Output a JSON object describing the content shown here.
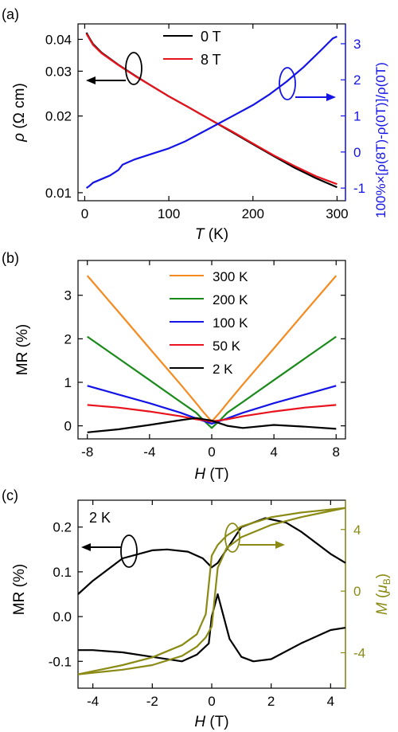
{
  "colors": {
    "black": "#000000",
    "red": "#e8131c",
    "blue": "#1414e6",
    "orange": "#f58a1f",
    "green": "#1a8a1a",
    "olive": "#8a8a14"
  },
  "chart_data": [
    {
      "panel_label": "(a)",
      "type": "line",
      "xlabel": "T (K)",
      "xlabel_italic": "T",
      "xlabel_unit": " (K)",
      "ylabel": "ρ (Ω cm)",
      "ylabel_italic": "ρ",
      "ylabel_unit": " (Ω cm)",
      "y2label": "100%×[ρ(8T)-ρ(0T)]/ρ(0T)",
      "y2_color": "#1414e6",
      "xlim": [
        -8,
        310
      ],
      "xticks": [
        0,
        100,
        200,
        300
      ],
      "ylim": [
        0.0093,
        0.046
      ],
      "yscale": "log",
      "yticks": [
        0.01,
        0.02,
        0.03,
        0.04
      ],
      "ytick_labels": [
        "0.01",
        "0.02",
        "0.03",
        "0.04"
      ],
      "y2lim": [
        -1.35,
        3.55
      ],
      "y2ticks": [
        -1,
        0,
        1,
        2,
        3
      ],
      "legend": [
        "0 T",
        "8 T"
      ],
      "legend_position": "top-center",
      "series": [
        {
          "name": "0 T",
          "axis": "left",
          "color": "#000000",
          "x": [
            2,
            5,
            10,
            20,
            40,
            60,
            80,
            100,
            125,
            150,
            175,
            200,
            225,
            250,
            275,
            300
          ],
          "y": [
            0.0425,
            0.0408,
            0.0383,
            0.0355,
            0.0318,
            0.0288,
            0.0262,
            0.0239,
            0.0215,
            0.0193,
            0.0173,
            0.0155,
            0.0139,
            0.0125,
            0.0114,
            0.0105
          ]
        },
        {
          "name": "8 T",
          "axis": "left",
          "color": "#e8131c",
          "x": [
            2,
            5,
            10,
            20,
            40,
            60,
            80,
            100,
            125,
            150,
            175,
            200,
            225,
            250,
            275,
            300
          ],
          "y": [
            0.0421,
            0.0405,
            0.038,
            0.0353,
            0.0317,
            0.0287,
            0.0262,
            0.0239,
            0.0215,
            0.0193,
            0.0174,
            0.0156,
            0.014,
            0.0127,
            0.0116,
            0.0108
          ]
        },
        {
          "name": "MR",
          "axis": "right",
          "color": "#1414e6",
          "x": [
            2,
            5,
            10,
            20,
            30,
            40,
            45,
            50,
            60,
            80,
            100,
            120,
            140,
            160,
            180,
            200,
            220,
            240,
            260,
            280,
            295,
            300
          ],
          "y": [
            -1.0,
            -0.95,
            -0.85,
            -0.75,
            -0.65,
            -0.5,
            -0.35,
            -0.3,
            -0.2,
            -0.05,
            0.1,
            0.3,
            0.55,
            0.8,
            1.05,
            1.3,
            1.6,
            1.95,
            2.35,
            2.8,
            3.15,
            3.2
          ]
        }
      ],
      "annotations": [
        {
          "type": "ellipse_arrow",
          "direction": "left",
          "color": "#000000",
          "at_x": 58,
          "at_y": 0.0295
        },
        {
          "type": "ellipse_arrow",
          "direction": "right",
          "color": "#1414e6",
          "at_x": 243,
          "at_y2": 1.9
        }
      ]
    },
    {
      "panel_label": "(b)",
      "type": "line",
      "xlabel": "H (T)",
      "xlabel_italic": "H",
      "xlabel_unit": " (T)",
      "ylabel": "MR (%)",
      "xlim": [
        -8.6,
        8.6
      ],
      "xticks": [
        -8,
        -4,
        0,
        4,
        8
      ],
      "ylim": [
        -0.3,
        3.8
      ],
      "yticks": [
        0,
        1,
        2,
        3
      ],
      "legend": [
        "300 K",
        "200 K",
        "100 K",
        "50 K",
        "2 K"
      ],
      "legend_position": "top-center",
      "series": [
        {
          "name": "300 K",
          "color": "#f58a1f",
          "x": [
            -8,
            -6,
            -4,
            -2,
            -1,
            -0.5,
            0,
            0.5,
            1,
            2,
            4,
            6,
            8
          ],
          "y": [
            3.45,
            2.62,
            1.78,
            0.95,
            0.52,
            0.3,
            0.1,
            0.3,
            0.52,
            0.95,
            1.78,
            2.62,
            3.45
          ]
        },
        {
          "name": "200 K",
          "color": "#1a8a1a",
          "x": [
            -8,
            -6,
            -4,
            -2,
            -1,
            -0.5,
            0,
            0.5,
            1,
            2,
            4,
            6,
            8
          ],
          "y": [
            2.05,
            1.55,
            1.05,
            0.55,
            0.3,
            0.12,
            -0.05,
            0.12,
            0.3,
            0.55,
            1.05,
            1.55,
            2.05
          ]
        },
        {
          "name": "100 K",
          "color": "#1414e6",
          "x": [
            -8,
            -6,
            -4,
            -2,
            -1,
            0,
            1,
            2,
            4,
            6,
            8
          ],
          "y": [
            0.92,
            0.72,
            0.52,
            0.3,
            0.17,
            0.05,
            0.17,
            0.3,
            0.52,
            0.72,
            0.92
          ]
        },
        {
          "name": "50 K",
          "color": "#e8131c",
          "x": [
            -8,
            -6,
            -4,
            -2,
            -1,
            0,
            1,
            2,
            4,
            6,
            8
          ],
          "y": [
            0.48,
            0.42,
            0.33,
            0.22,
            0.15,
            0.1,
            0.15,
            0.22,
            0.33,
            0.42,
            0.48
          ]
        },
        {
          "name": "2 K",
          "color": "#000000",
          "x": [
            -8,
            -6,
            -4,
            -2,
            -1,
            0,
            1,
            2,
            4,
            6,
            8
          ],
          "y": [
            -0.15,
            -0.08,
            0.02,
            0.13,
            0.18,
            0.12,
            0.0,
            -0.05,
            0.02,
            -0.02,
            -0.07
          ]
        }
      ]
    },
    {
      "panel_label": "(c)",
      "type": "line",
      "xlabel": "H (T)",
      "xlabel_italic": "H",
      "xlabel_unit": " (T)",
      "ylabel": "MR (%)",
      "y2label": "M (μB)",
      "y2label_italic": "M",
      "y2label_unit_main": "μ",
      "y2label_unit_sub": "B",
      "y2_color": "#8a8a14",
      "xlim": [
        -4.5,
        4.5
      ],
      "xticks": [
        -4,
        -2,
        0,
        2,
        4
      ],
      "ylim": [
        -0.16,
        0.26
      ],
      "yticks": [
        -0.1,
        0.0,
        0.1,
        0.2
      ],
      "ytick_labels": [
        "-0.1",
        "0.0",
        "0.1",
        "0.2"
      ],
      "y2lim": [
        -6.3,
        5.9
      ],
      "y2ticks": [
        -4,
        0,
        4
      ],
      "annotation_text": "2 K",
      "series": [
        {
          "name": "MR down sweep",
          "axis": "left",
          "color": "#000000",
          "x": [
            4.5,
            4,
            3,
            2.5,
            1.8,
            1,
            0.5,
            0.2,
            0,
            -0.3,
            -0.8,
            -1.5,
            -2,
            -3,
            -4,
            -4.5
          ],
          "y": [
            0.12,
            0.14,
            0.19,
            0.21,
            0.22,
            0.2,
            0.15,
            0.12,
            0.11,
            0.13,
            0.145,
            0.15,
            0.148,
            0.13,
            0.08,
            0.05
          ]
        },
        {
          "name": "MR up sweep",
          "axis": "left",
          "color": "#000000",
          "x": [
            -4.5,
            -4,
            -3,
            -2,
            -1,
            -0.5,
            -0.1,
            0,
            0.2,
            0.6,
            1,
            1.4,
            2,
            3,
            4,
            4.5
          ],
          "y": [
            -0.075,
            -0.075,
            -0.08,
            -0.09,
            -0.1,
            -0.085,
            -0.06,
            0.0,
            0.05,
            -0.05,
            -0.09,
            -0.1,
            -0.095,
            -0.06,
            -0.03,
            -0.025
          ]
        },
        {
          "name": "M down sweep",
          "axis": "right",
          "color": "#8a8a14",
          "x": [
            4.5,
            4,
            3,
            2,
            1,
            0.5,
            0.2,
            0,
            -0.2,
            -0.5,
            -1,
            -2,
            -3,
            -4,
            -4.5
          ],
          "y": [
            5.4,
            5.3,
            5.1,
            4.8,
            4.2,
            3.6,
            3.0,
            2.3,
            -1.5,
            -2.8,
            -3.5,
            -4.3,
            -4.8,
            -5.2,
            -5.4
          ]
        },
        {
          "name": "M up sweep",
          "axis": "right",
          "color": "#8a8a14",
          "x": [
            -4.5,
            -4,
            -3,
            -2,
            -1,
            -0.5,
            -0.2,
            0,
            0.2,
            0.5,
            1,
            2,
            3,
            4,
            4.5
          ],
          "y": [
            -5.4,
            -5.3,
            -5.1,
            -4.8,
            -4.2,
            -3.6,
            -3.0,
            -2.3,
            1.5,
            2.8,
            3.5,
            4.3,
            4.8,
            5.2,
            5.4
          ]
        }
      ],
      "annotations": [
        {
          "type": "ellipse_arrow",
          "direction": "left",
          "color": "#000000",
          "at_x": -2.9,
          "at_y": 0.12
        },
        {
          "type": "ellipse_arrow",
          "direction": "right",
          "color": "#8a8a14",
          "at_x": 0.5,
          "at_y2": 2.0
        }
      ]
    }
  ]
}
